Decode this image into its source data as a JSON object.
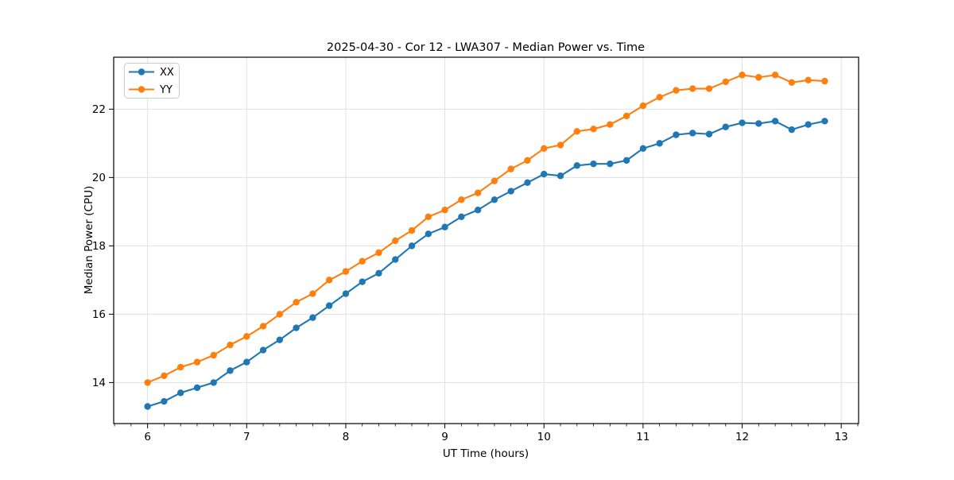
{
  "chart_data": {
    "type": "line",
    "title": "2025-04-30 - Cor 12 - LWA307 - Median Power vs. Time",
    "xlabel": "UT Time (hours)",
    "ylabel": "Median Power (CPU)",
    "xlim": [
      5.658,
      13.175
    ],
    "ylim": [
      12.8,
      23.52
    ],
    "xticks": [
      6,
      7,
      8,
      9,
      10,
      11,
      12,
      13
    ],
    "yticks": [
      14,
      16,
      18,
      20,
      22
    ],
    "x_minor_step_hours": 0.16667,
    "grid": true,
    "legend_position": "upper-left",
    "x": [
      6,
      6.1667,
      6.3333,
      6.5,
      6.6667,
      6.8333,
      7,
      7.1667,
      7.3333,
      7.5,
      7.6667,
      7.8333,
      8,
      8.1667,
      8.3333,
      8.5,
      8.6667,
      8.8333,
      9,
      9.1667,
      9.3333,
      9.5,
      9.6667,
      9.8333,
      10,
      10.1667,
      10.3333,
      10.5,
      10.6667,
      10.8333,
      11,
      11.1667,
      11.3333,
      11.5,
      11.6667,
      11.8333,
      12,
      12.1667,
      12.3333,
      12.5,
      12.6667,
      12.8333
    ],
    "series": [
      {
        "name": "XX",
        "color": "#1f77b4",
        "values": [
          13.3,
          13.45,
          13.7,
          13.85,
          14.0,
          14.35,
          14.6,
          14.95,
          15.25,
          15.6,
          15.9,
          16.25,
          16.6,
          16.95,
          17.2,
          17.6,
          18.0,
          18.35,
          18.55,
          18.85,
          19.05,
          19.35,
          19.6,
          19.85,
          20.1,
          20.05,
          20.35,
          20.4,
          20.4,
          20.5,
          20.85,
          21.0,
          21.25,
          21.3,
          21.27,
          21.48,
          21.6,
          21.58,
          21.65,
          21.4,
          21.55,
          21.65
        ]
      },
      {
        "name": "YY",
        "color": "#ff7f0e",
        "values": [
          14.0,
          14.2,
          14.45,
          14.6,
          14.8,
          15.1,
          15.35,
          15.65,
          16.0,
          16.35,
          16.6,
          17.0,
          17.25,
          17.55,
          17.8,
          18.15,
          18.45,
          18.85,
          19.05,
          19.35,
          19.55,
          19.9,
          20.25,
          20.5,
          20.85,
          20.95,
          21.35,
          21.42,
          21.55,
          21.8,
          22.1,
          22.35,
          22.55,
          22.6,
          22.6,
          22.8,
          23.0,
          22.93,
          23.0,
          22.78,
          22.85,
          22.82
        ]
      }
    ]
  },
  "colors": {
    "background": "#ffffff",
    "grid": "#e0e0e0",
    "spine": "#000000",
    "text": "#000000",
    "legend_border": "#cccccc",
    "series_xx": "#1f77b4",
    "series_yy": "#ff7f0e"
  }
}
